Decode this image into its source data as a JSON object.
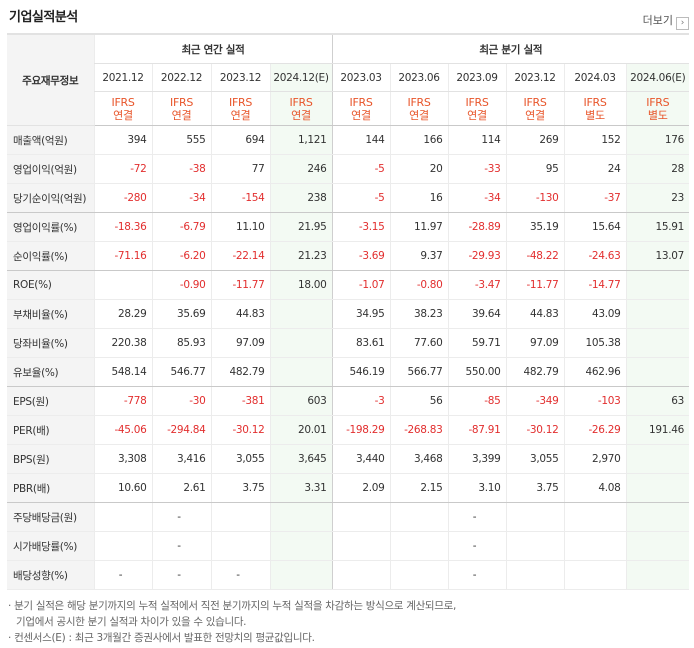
{
  "title": "기업실적분석",
  "more_label": "더보기",
  "header": {
    "label": "주요재무정보",
    "annual_group": "최근 연간 실적",
    "quarter_group": "최근 분기 실적",
    "periods": [
      "2021.12",
      "2022.12",
      "2023.12",
      "2024.12(E)",
      "2023.03",
      "2023.06",
      "2023.09",
      "2023.12",
      "2024.03",
      "2024.06(E)"
    ],
    "ifrs": [
      "IFRS",
      "IFRS",
      "IFRS",
      "IFRS",
      "IFRS",
      "IFRS",
      "IFRS",
      "IFRS",
      "IFRS",
      "IFRS"
    ],
    "basis": [
      "연결",
      "연결",
      "연결",
      "연결",
      "연결",
      "연결",
      "연결",
      "연결",
      "별도",
      "별도"
    ]
  },
  "rows": [
    {
      "label": "매출액(억원)",
      "values": [
        "394",
        "555",
        "694",
        "1,121",
        "144",
        "166",
        "114",
        "269",
        "152",
        "176"
      ]
    },
    {
      "label": "영업이익(억원)",
      "values": [
        "-72",
        "-38",
        "77",
        "246",
        "-5",
        "20",
        "-33",
        "95",
        "24",
        "28"
      ]
    },
    {
      "label": "당기순이익(억원)",
      "values": [
        "-280",
        "-34",
        "-154",
        "238",
        "-5",
        "16",
        "-34",
        "-130",
        "-37",
        "23"
      ]
    },
    {
      "label": "영업이익률(%)",
      "values": [
        "-18.36",
        "-6.79",
        "11.10",
        "21.95",
        "-3.15",
        "11.97",
        "-28.89",
        "35.19",
        "15.64",
        "15.91"
      ]
    },
    {
      "label": "순이익률(%)",
      "values": [
        "-71.16",
        "-6.20",
        "-22.14",
        "21.23",
        "-3.69",
        "9.37",
        "-29.93",
        "-48.22",
        "-24.63",
        "13.07"
      ]
    },
    {
      "label": "ROE(%)",
      "values": [
        "",
        "-0.90",
        "-11.77",
        "18.00",
        "-1.07",
        "-0.80",
        "-3.47",
        "-11.77",
        "-14.77",
        ""
      ]
    },
    {
      "label": "부채비율(%)",
      "values": [
        "28.29",
        "35.69",
        "44.83",
        "",
        "34.95",
        "38.23",
        "39.64",
        "44.83",
        "43.09",
        ""
      ]
    },
    {
      "label": "당좌비율(%)",
      "values": [
        "220.38",
        "85.93",
        "97.09",
        "",
        "83.61",
        "77.60",
        "59.71",
        "97.09",
        "105.38",
        ""
      ]
    },
    {
      "label": "유보율(%)",
      "values": [
        "548.14",
        "546.77",
        "482.79",
        "",
        "546.19",
        "566.77",
        "550.00",
        "482.79",
        "462.96",
        ""
      ]
    },
    {
      "label": "EPS(원)",
      "values": [
        "-778",
        "-30",
        "-381",
        "603",
        "-3",
        "56",
        "-85",
        "-349",
        "-103",
        "63"
      ]
    },
    {
      "label": "PER(배)",
      "values": [
        "-45.06",
        "-294.84",
        "-30.12",
        "20.01",
        "-198.29",
        "-268.83",
        "-87.91",
        "-30.12",
        "-26.29",
        "191.46"
      ]
    },
    {
      "label": "BPS(원)",
      "values": [
        "3,308",
        "3,416",
        "3,055",
        "3,645",
        "3,440",
        "3,468",
        "3,399",
        "3,055",
        "2,970",
        ""
      ]
    },
    {
      "label": "PBR(배)",
      "values": [
        "10.60",
        "2.61",
        "3.75",
        "3.31",
        "2.09",
        "2.15",
        "3.10",
        "3.75",
        "4.08",
        ""
      ]
    },
    {
      "label": "주당배당금(원)",
      "values": [
        "",
        "-",
        "",
        "",
        "",
        "",
        "-",
        "",
        "",
        ""
      ]
    },
    {
      "label": "시가배당률(%)",
      "values": [
        "",
        "-",
        "",
        "",
        "",
        "",
        "-",
        "",
        "",
        ""
      ]
    },
    {
      "label": "배당성향(%)",
      "values": [
        "-",
        "-",
        "-",
        "",
        "",
        "",
        "-",
        "",
        "",
        ""
      ]
    }
  ],
  "notes": [
    "· 분기 실적은 해당 분기까지의 누적 실적에서 직전 분기까지의 누적 실적을 차감하는 방식으로 계산되므로,",
    "기업에서 공시한 분기 실적과 차이가 있을 수 있습니다.",
    "· 컨센서스(E) : 최근 3개월간 증권사에서 발표한 전망치의 평균값입니다."
  ]
}
